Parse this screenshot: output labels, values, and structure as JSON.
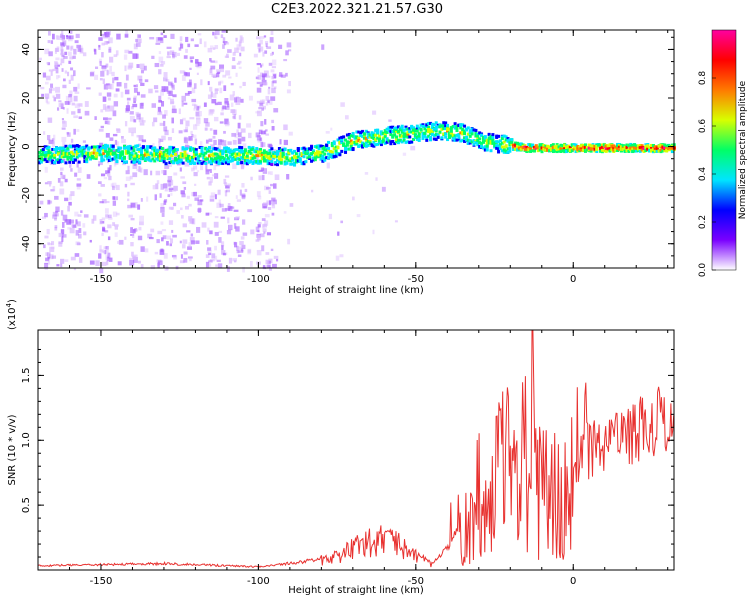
{
  "figure_title": "C2E3.2022.321.21.57.G30",
  "chart_data": [
    {
      "type": "heatmap",
      "xlabel": "Height of straight line (km)",
      "ylabel": "Frequency (Hz)",
      "xlim": [
        -170,
        32
      ],
      "ylim": [
        -50,
        48
      ],
      "x_ticks": [
        -150,
        -100,
        -50,
        0
      ],
      "y_ticks": [
        -40,
        -20,
        0,
        20,
        40
      ],
      "colorbar": {
        "label": "Normalized spectral amplitude",
        "range": [
          0,
          1
        ],
        "ticks": [
          "0.0",
          "0.2",
          "0.4",
          "0.6",
          "0.8"
        ],
        "colors": [
          "#ffffff",
          "#7a00ff",
          "#0000ff",
          "#00e5ff",
          "#00ff66",
          "#d8ff00",
          "#ff7a00",
          "#ff0000",
          "#ff00a0"
        ]
      },
      "ridge_frequency": {
        "x": [
          -170,
          -150,
          -130,
          -110,
          -100,
          -90,
          -80,
          -70,
          -60,
          -50,
          -45,
          -40,
          -35,
          -30,
          -25,
          -20,
          -15,
          -10,
          -5,
          0,
          5,
          10,
          20,
          32
        ],
        "y": [
          -3,
          -2,
          -3,
          -3,
          -3,
          -4,
          -2,
          3,
          5,
          6,
          7,
          7,
          6,
          3,
          2,
          1,
          0,
          0,
          0,
          0,
          0,
          0,
          0,
          0
        ]
      }
    },
    {
      "type": "line",
      "xlabel": "Height of straight line (km)",
      "ylabel": "SNR (10 * v/v)",
      "y_multiplier": "(x10",
      "y_multiplier_exp": "4",
      "y_multiplier_close": ")",
      "xlim": [
        -170,
        32
      ],
      "ylim": [
        0,
        1.85
      ],
      "x_ticks": [
        -150,
        -100,
        -50,
        0
      ],
      "y_ticks": [
        0.5,
        1.0,
        1.5
      ],
      "y_tick_labels": [
        "0.5",
        "1.0",
        "1.5"
      ],
      "color": "#e8312f",
      "envelope": {
        "x": [
          -170,
          -130,
          -100,
          -85,
          -75,
          -70,
          -65,
          -60,
          -55,
          -50,
          -45,
          -40,
          -35,
          -30,
          -25,
          -20,
          -15,
          -10,
          -5,
          0,
          10,
          20,
          32
        ],
        "y": [
          0.04,
          0.06,
          0.03,
          0.08,
          0.15,
          0.25,
          0.32,
          0.36,
          0.28,
          0.18,
          0.06,
          0.2,
          0.45,
          0.7,
          1.0,
          1.1,
          1.2,
          1.15,
          1.1,
          1.1,
          1.2,
          1.35,
          1.48
        ]
      },
      "peak": {
        "x": -13,
        "y": 1.85
      }
    }
  ]
}
